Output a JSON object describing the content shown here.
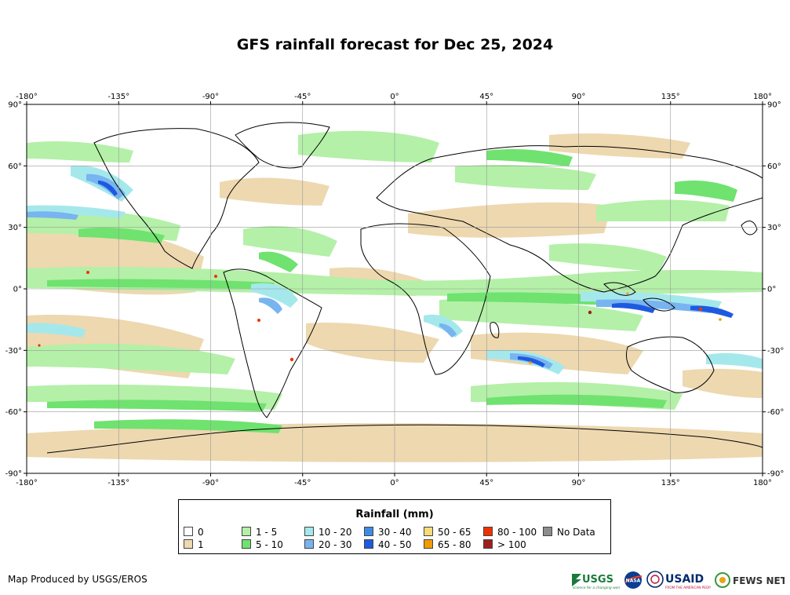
{
  "title": "GFS rainfall forecast for Dec 25, 2024",
  "map": {
    "lon_range": [
      -180,
      180
    ],
    "lat_range": [
      -90,
      90
    ],
    "lon_ticks": [
      "-180°",
      "-135°",
      "-90°",
      "-45°",
      "0°",
      "45°",
      "90°",
      "135°",
      "180°"
    ],
    "lat_ticks": [
      "90°",
      "60°",
      "30°",
      "0°",
      "-30°",
      "-60°",
      "-90°"
    ],
    "grid": true
  },
  "legend": {
    "title": "Rainfall (mm)",
    "items": [
      {
        "label": "0",
        "color": "#ffffff"
      },
      {
        "label": "1",
        "color": "#edd8b0"
      },
      {
        "label": "1 - 5",
        "color": "#b4f0a8"
      },
      {
        "label": "5 - 10",
        "color": "#6fe26f"
      },
      {
        "label": "10 - 20",
        "color": "#a5e8ec"
      },
      {
        "label": "20 - 30",
        "color": "#78b4f0"
      },
      {
        "label": "30 - 40",
        "color": "#3c8ce6"
      },
      {
        "label": "40 - 50",
        "color": "#1e5ae0"
      },
      {
        "label": "50 - 65",
        "color": "#f6dc78"
      },
      {
        "label": "65 - 80",
        "color": "#f09c00"
      },
      {
        "label": "80 - 100",
        "color": "#f03200"
      },
      {
        "label": "> 100",
        "color": "#a01e1e"
      },
      {
        "label": "No Data",
        "color": "#8c8c8c"
      }
    ]
  },
  "credit": "Map Produced by USGS/EROS",
  "logos": {
    "usgs": "USGS",
    "usgs_tagline": "science for a changing world",
    "nasa": "NASA",
    "usaid": "USAID",
    "usaid_tagline": "FROM THE AMERICAN PEOPLE",
    "fews": "FEWS NET"
  }
}
